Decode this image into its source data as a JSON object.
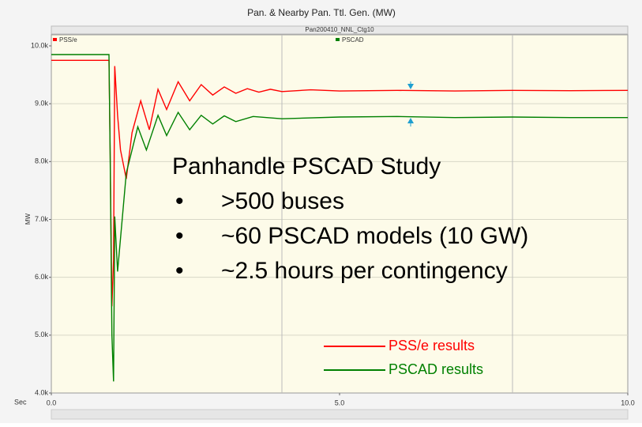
{
  "chart_data": {
    "type": "line",
    "title": "Pan. & Nearby Pan. Ttl. Gen. (MW)",
    "subtitle": "Pan200410_NNL_Ctg10",
    "y_label": "MW",
    "x_label": "Sec",
    "xlim": [
      0,
      10
    ],
    "ylim": [
      4000,
      10000
    ],
    "xticks": [
      {
        "value": 0,
        "label": "0.0"
      },
      {
        "value": 5,
        "label": "5.0"
      },
      {
        "value": 10,
        "label": "10.0"
      }
    ],
    "yticks": [
      {
        "value": 4000,
        "label": "4.0k"
      },
      {
        "value": 5000,
        "label": "5.0k"
      },
      {
        "value": 6000,
        "label": "6.0k"
      },
      {
        "value": 7000,
        "label": "7.0k"
      },
      {
        "value": 8000,
        "label": "8.0k"
      },
      {
        "value": 9000,
        "label": "9.0k"
      },
      {
        "value": 10000,
        "label": "10.0k"
      }
    ],
    "x_gridlines": [
      4,
      8
    ],
    "grid": true,
    "series": [
      {
        "name": "PSS/e",
        "color": "#ff0000",
        "x": [
          0,
          1.0,
          1.02,
          1.05,
          1.08,
          1.1,
          1.15,
          1.2,
          1.3,
          1.4,
          1.55,
          1.7,
          1.85,
          2.0,
          2.2,
          2.4,
          2.6,
          2.8,
          3.0,
          3.2,
          3.4,
          3.6,
          3.8,
          4.0,
          4.5,
          5.0,
          6.0,
          7.0,
          8.0,
          9.0,
          10.0
        ],
        "values": [
          9750,
          9750,
          8200,
          5500,
          6300,
          9650,
          8800,
          8200,
          7700,
          8500,
          9050,
          8550,
          9250,
          8900,
          9380,
          9050,
          9330,
          9150,
          9290,
          9180,
          9260,
          9200,
          9250,
          9210,
          9240,
          9220,
          9230,
          9220,
          9230,
          9225,
          9230
        ]
      },
      {
        "name": "PSCAD",
        "color": "#008000",
        "x": [
          0,
          1.0,
          1.02,
          1.05,
          1.08,
          1.1,
          1.15,
          1.3,
          1.5,
          1.65,
          1.85,
          2.0,
          2.2,
          2.4,
          2.6,
          2.8,
          3.0,
          3.2,
          3.5,
          4.0,
          5.0,
          6.0,
          7.0,
          8.0,
          9.0,
          10.0
        ],
        "values": [
          9850,
          9850,
          8100,
          5000,
          4200,
          7050,
          6100,
          7800,
          8600,
          8200,
          8800,
          8450,
          8850,
          8550,
          8800,
          8650,
          8790,
          8690,
          8780,
          8740,
          8770,
          8780,
          8760,
          8770,
          8760,
          8760
        ]
      }
    ],
    "annotation": {
      "title": "Panhandle PSCAD Study",
      "bullet_symbol": "•",
      "bullets": [
        ">500 buses",
        "~60 PSCAD models (10 GW)",
        "~2.5 hours per contingency"
      ]
    },
    "result_legend": [
      "PSS/e results",
      "PSCAD results"
    ]
  }
}
